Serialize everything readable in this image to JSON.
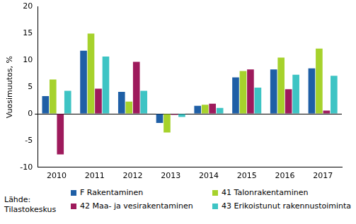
{
  "chart_data": {
    "type": "bar",
    "y_label": "Vuosimuutos, %",
    "source": "Lähde: Tilastokeskus",
    "categories": [
      "2010",
      "2011",
      "2012",
      "2013",
      "2014",
      "2015",
      "2016",
      "2017"
    ],
    "series": [
      {
        "name": "F Rakentaminen",
        "color": "#1f5fa6",
        "values": [
          3.3,
          11.8,
          4.1,
          -1.7,
          1.5,
          6.8,
          8.3,
          8.5
        ]
      },
      {
        "name": "41 Talonrakentaminen",
        "color": "#a6d22c",
        "values": [
          6.4,
          15.0,
          2.3,
          -3.5,
          1.7,
          8.0,
          10.5,
          12.2
        ]
      },
      {
        "name": "42 Maa- ja vesirakentaminen",
        "color": "#9e1a5c",
        "values": [
          -7.6,
          4.7,
          9.7,
          -0.2,
          1.9,
          8.3,
          4.6,
          0.6
        ]
      },
      {
        "name": "43 Erikoistunut rakennustoiminta",
        "color": "#3ec4c4",
        "values": [
          4.3,
          10.7,
          4.3,
          -0.6,
          1.1,
          4.9,
          7.3,
          7.1
        ]
      }
    ],
    "ylim": [
      -10,
      20
    ],
    "yticks": [
      -10,
      -5,
      0,
      5,
      10,
      15,
      20
    ],
    "grid": false,
    "legend": "bottom"
  }
}
